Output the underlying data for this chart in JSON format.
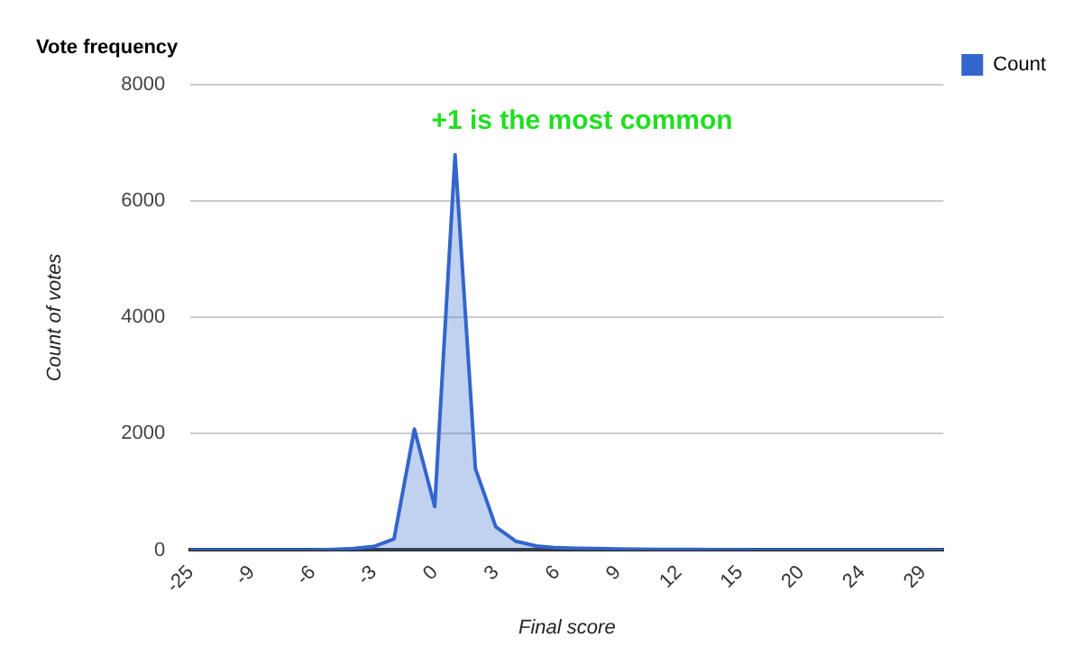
{
  "chart_data": {
    "type": "area",
    "title": "Vote frequency",
    "xlabel": "Final score",
    "ylabel": "Count of votes",
    "categories": [
      "-25",
      null,
      null,
      "-9",
      null,
      null,
      "-6",
      null,
      null,
      "-3",
      null,
      null,
      "0",
      null,
      null,
      "3",
      null,
      null,
      "6",
      null,
      null,
      "9",
      null,
      null,
      "12",
      null,
      null,
      "15",
      null,
      null,
      "20",
      null,
      null,
      "24",
      null,
      null,
      "29",
      null
    ],
    "series": [
      {
        "name": "Count",
        "color": "#3366cc",
        "values": [
          0,
          0,
          0,
          0,
          0,
          0,
          0,
          10,
          25,
          60,
          190,
          2080,
          750,
          6800,
          1400,
          400,
          150,
          70,
          40,
          30,
          25,
          20,
          15,
          10,
          10,
          10,
          5,
          5,
          0,
          0,
          0,
          0,
          0,
          0,
          0,
          0,
          0,
          0
        ]
      }
    ],
    "ylim": [
      0,
      8000
    ],
    "yticks": [
      0,
      2000,
      4000,
      6000,
      8000
    ],
    "grid": "y",
    "legend": "top right",
    "marker": "none",
    "annotations": [
      "+1 is the most common"
    ]
  }
}
